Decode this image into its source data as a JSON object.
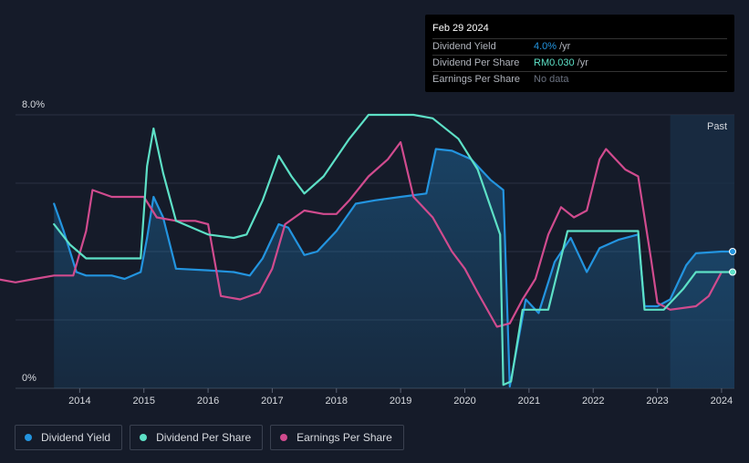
{
  "chart_data": {
    "type": "line",
    "x_range": [
      2013.0,
      2024.2
    ],
    "ylim": [
      0,
      8.0
    ],
    "y_tick_labels": [
      "8.0%",
      "0%"
    ],
    "x_ticks": [
      2014,
      2015,
      2016,
      2017,
      2018,
      2019,
      2020,
      2021,
      2022,
      2023,
      2024
    ],
    "x_tick_labels": [
      "2014",
      "2015",
      "2016",
      "2017",
      "2018",
      "2019",
      "2020",
      "2021",
      "2022",
      "2023",
      "2024"
    ],
    "past_label": "Past",
    "forecast_start": 2023.2,
    "series": [
      {
        "name": "Dividend Yield",
        "color": "#2394df",
        "area": true,
        "points": [
          [
            2013.6,
            5.4
          ],
          [
            2013.75,
            4.6
          ],
          [
            2013.95,
            3.4
          ],
          [
            2014.1,
            3.3
          ],
          [
            2014.5,
            3.3
          ],
          [
            2014.7,
            3.2
          ],
          [
            2014.95,
            3.4
          ],
          [
            2015.05,
            4.4
          ],
          [
            2015.15,
            5.6
          ],
          [
            2015.3,
            5.0
          ],
          [
            2015.5,
            3.5
          ],
          [
            2016.0,
            3.45
          ],
          [
            2016.4,
            3.4
          ],
          [
            2016.65,
            3.3
          ],
          [
            2016.85,
            3.8
          ],
          [
            2017.1,
            4.8
          ],
          [
            2017.25,
            4.7
          ],
          [
            2017.5,
            3.9
          ],
          [
            2017.7,
            4.0
          ],
          [
            2018.0,
            4.6
          ],
          [
            2018.3,
            5.4
          ],
          [
            2018.6,
            5.5
          ],
          [
            2019.0,
            5.6
          ],
          [
            2019.4,
            5.7
          ],
          [
            2019.55,
            7.0
          ],
          [
            2019.8,
            6.95
          ],
          [
            2020.1,
            6.7
          ],
          [
            2020.4,
            6.1
          ],
          [
            2020.6,
            5.8
          ],
          [
            2020.7,
            0.05
          ],
          [
            2020.95,
            2.6
          ],
          [
            2021.15,
            2.2
          ],
          [
            2021.4,
            3.7
          ],
          [
            2021.65,
            4.4
          ],
          [
            2021.9,
            3.4
          ],
          [
            2022.1,
            4.1
          ],
          [
            2022.4,
            4.35
          ],
          [
            2022.7,
            4.5
          ],
          [
            2022.8,
            2.4
          ],
          [
            2023.0,
            2.4
          ],
          [
            2023.2,
            2.6
          ],
          [
            2023.45,
            3.6
          ],
          [
            2023.6,
            3.95
          ],
          [
            2024.0,
            4.0
          ],
          [
            2024.2,
            4.0
          ]
        ]
      },
      {
        "name": "Dividend Per Share",
        "color": "#5de0c6",
        "area": false,
        "points": [
          [
            2013.6,
            4.8
          ],
          [
            2013.85,
            4.2
          ],
          [
            2014.1,
            3.8
          ],
          [
            2014.5,
            3.8
          ],
          [
            2014.95,
            3.8
          ],
          [
            2015.05,
            6.5
          ],
          [
            2015.15,
            7.6
          ],
          [
            2015.3,
            6.3
          ],
          [
            2015.5,
            4.9
          ],
          [
            2016.0,
            4.5
          ],
          [
            2016.4,
            4.4
          ],
          [
            2016.6,
            4.5
          ],
          [
            2016.85,
            5.5
          ],
          [
            2017.1,
            6.8
          ],
          [
            2017.3,
            6.2
          ],
          [
            2017.5,
            5.7
          ],
          [
            2017.8,
            6.2
          ],
          [
            2018.2,
            7.3
          ],
          [
            2018.5,
            8.0
          ],
          [
            2019.2,
            8.0
          ],
          [
            2019.5,
            7.9
          ],
          [
            2019.9,
            7.3
          ],
          [
            2020.2,
            6.4
          ],
          [
            2020.55,
            4.5
          ],
          [
            2020.6,
            0.1
          ],
          [
            2020.72,
            0.2
          ],
          [
            2020.9,
            2.3
          ],
          [
            2021.3,
            2.3
          ],
          [
            2021.6,
            4.6
          ],
          [
            2021.9,
            4.6
          ],
          [
            2022.7,
            4.6
          ],
          [
            2022.8,
            2.3
          ],
          [
            2023.1,
            2.3
          ],
          [
            2023.4,
            2.9
          ],
          [
            2023.6,
            3.4
          ],
          [
            2024.0,
            3.4
          ],
          [
            2024.2,
            3.4
          ]
        ]
      },
      {
        "name": "Earnings Per Share",
        "color": "#d04b8e",
        "area": false,
        "points": [
          [
            2012.7,
            3.2
          ],
          [
            2013.0,
            3.1
          ],
          [
            2013.3,
            3.2
          ],
          [
            2013.6,
            3.3
          ],
          [
            2013.9,
            3.3
          ],
          [
            2014.1,
            4.6
          ],
          [
            2014.2,
            5.8
          ],
          [
            2014.5,
            5.6
          ],
          [
            2014.8,
            5.6
          ],
          [
            2015.0,
            5.6
          ],
          [
            2015.2,
            5.0
          ],
          [
            2015.5,
            4.9
          ],
          [
            2015.8,
            4.9
          ],
          [
            2016.0,
            4.8
          ],
          [
            2016.2,
            2.7
          ],
          [
            2016.5,
            2.6
          ],
          [
            2016.8,
            2.8
          ],
          [
            2017.0,
            3.5
          ],
          [
            2017.2,
            4.8
          ],
          [
            2017.5,
            5.2
          ],
          [
            2017.8,
            5.1
          ],
          [
            2018.0,
            5.1
          ],
          [
            2018.2,
            5.5
          ],
          [
            2018.5,
            6.2
          ],
          [
            2018.8,
            6.7
          ],
          [
            2019.0,
            7.2
          ],
          [
            2019.2,
            5.6
          ],
          [
            2019.5,
            5.0
          ],
          [
            2019.8,
            4.0
          ],
          [
            2020.0,
            3.5
          ],
          [
            2020.2,
            2.8
          ],
          [
            2020.5,
            1.8
          ],
          [
            2020.7,
            1.9
          ],
          [
            2020.9,
            2.6
          ],
          [
            2021.1,
            3.2
          ],
          [
            2021.3,
            4.5
          ],
          [
            2021.5,
            5.3
          ],
          [
            2021.7,
            5.0
          ],
          [
            2021.9,
            5.2
          ],
          [
            2022.1,
            6.7
          ],
          [
            2022.2,
            7.0
          ],
          [
            2022.3,
            6.8
          ],
          [
            2022.5,
            6.4
          ],
          [
            2022.7,
            6.2
          ],
          [
            2022.9,
            3.8
          ],
          [
            2023.0,
            2.5
          ],
          [
            2023.2,
            2.3
          ],
          [
            2023.6,
            2.4
          ],
          [
            2023.8,
            2.7
          ],
          [
            2024.0,
            3.4
          ]
        ]
      }
    ]
  },
  "tooltip": {
    "date": "Feb 29 2024",
    "rows": [
      {
        "label": "Dividend Yield",
        "value": "4.0%",
        "unit": "/yr",
        "color": "#2394df"
      },
      {
        "label": "Dividend Per Share",
        "value": "RM0.030",
        "unit": "/yr",
        "color": "#5de0c6"
      },
      {
        "label": "Earnings Per Share",
        "value": "No data",
        "unit": "",
        "color": "#6b7280"
      }
    ]
  },
  "legend": [
    {
      "label": "Dividend Yield",
      "color": "#2394df"
    },
    {
      "label": "Dividend Per Share",
      "color": "#5de0c6"
    },
    {
      "label": "Earnings Per Share",
      "color": "#d04b8e"
    }
  ]
}
